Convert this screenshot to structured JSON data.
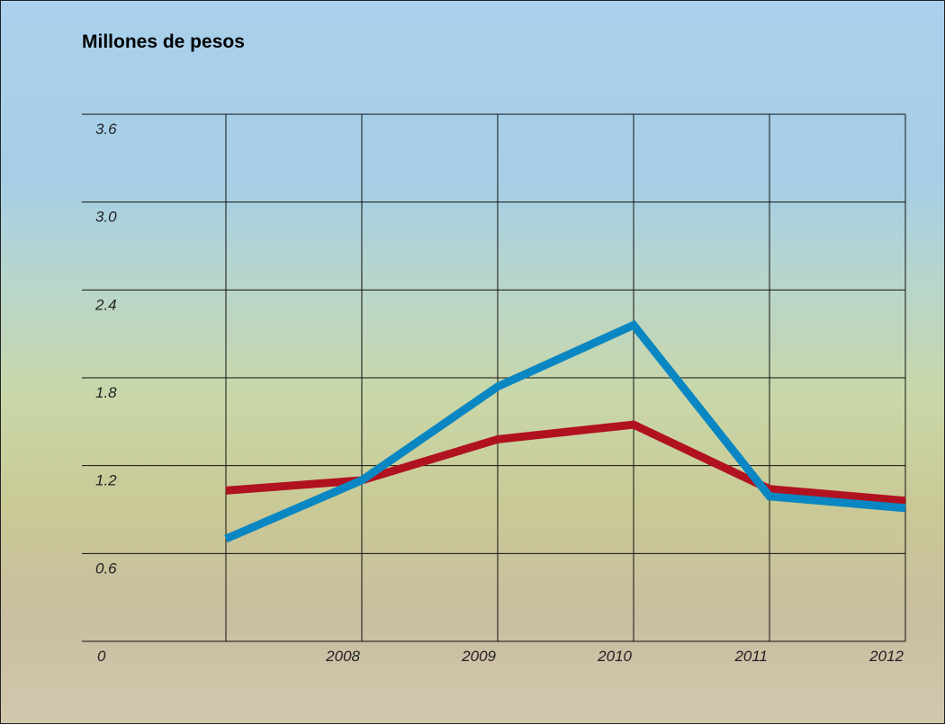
{
  "chart_data": {
    "type": "line",
    "title": "Millones de pesos",
    "categories": [
      null,
      "2008",
      "2009",
      "2010",
      "2011",
      "2012"
    ],
    "series": [
      {
        "color": "#b1121f",
        "values": [
          1.03,
          1.1,
          1.38,
          1.48,
          1.04,
          0.96
        ]
      },
      {
        "color": "#0a87c2",
        "values": [
          0.7,
          1.1,
          1.74,
          2.16,
          0.99,
          0.91
        ]
      }
    ],
    "ylim": [
      0,
      3.6
    ],
    "yticks": [
      0,
      0.6,
      1.2,
      1.8,
      2.4,
      {
        "value": 3,
        "label": "3.0"
      },
      3.6
    ],
    "grid": true
  }
}
